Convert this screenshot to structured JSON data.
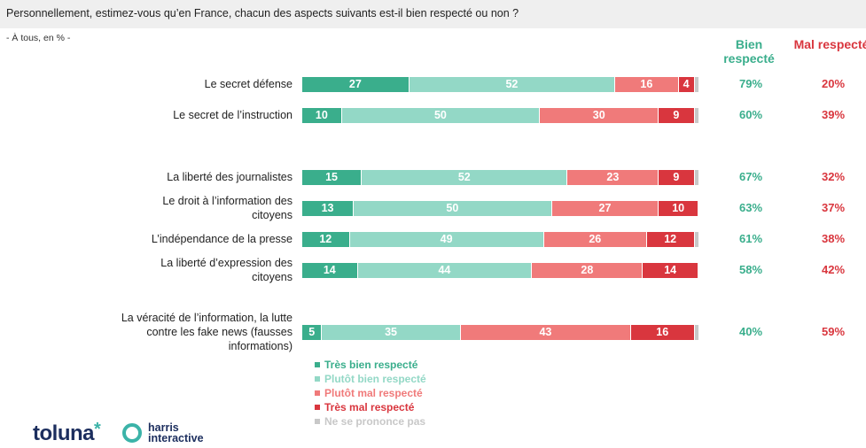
{
  "header": {
    "question": "Personnellement, estimez-vous qu’en France, chacun des aspects suivants est-il bien respecté ou non ?",
    "base": "- À tous, en % -"
  },
  "columns": {
    "bien": "Bien respecté",
    "mal": "Mal respecté"
  },
  "chart_data": {
    "type": "bar",
    "orientation": "horizontal",
    "stacked": true,
    "categories": [
      "Le secret défense",
      "Le secret de l’instruction",
      "La liberté des journalistes",
      "Le droit à l’information des citoyens",
      "L’indépendance de la presse",
      "La liberté d’expression des citoyens",
      "La véracité de l’information, la lutte contre les fake news (fausses informations)"
    ],
    "series": [
      {
        "name": "Très bien respecté",
        "color": "#3aae8c",
        "values": [
          27,
          10,
          15,
          13,
          12,
          14,
          5
        ]
      },
      {
        "name": "Plutôt bien respecté",
        "color": "#93d8c6",
        "values": [
          52,
          50,
          52,
          50,
          49,
          44,
          35
        ]
      },
      {
        "name": "Plutôt mal respecté",
        "color": "#f07a7a",
        "values": [
          16,
          30,
          23,
          27,
          26,
          28,
          43
        ]
      },
      {
        "name": "Très mal respecté",
        "color": "#d9363e",
        "values": [
          4,
          9,
          9,
          10,
          12,
          14,
          16
        ]
      },
      {
        "name": "Ne se prononce pas",
        "color": "#c8c8c8",
        "values": [
          1,
          1,
          1,
          0,
          1,
          0,
          1
        ]
      }
    ],
    "totals_bien": [
      "79%",
      "60%",
      "67%",
      "63%",
      "61%",
      "58%",
      "40%"
    ],
    "totals_mal": [
      "20%",
      "39%",
      "32%",
      "37%",
      "38%",
      "42%",
      "59%"
    ],
    "xlim": [
      0,
      100
    ],
    "legend_position": "bottom"
  },
  "legend": [
    {
      "label": "Très bien respecté",
      "color": "#3aae8c"
    },
    {
      "label": "Plutôt bien respecté",
      "color": "#93d8c6"
    },
    {
      "label": "Plutôt mal respecté",
      "color": "#f07a7a"
    },
    {
      "label": "Très mal respecté",
      "color": "#d9363e"
    },
    {
      "label": "Ne se prononce pas",
      "color": "#c8c8c8"
    }
  ],
  "logos": {
    "toluna": "toluna",
    "toluna_star": "*",
    "harris_line1": "harris",
    "harris_line2": "interactive"
  }
}
